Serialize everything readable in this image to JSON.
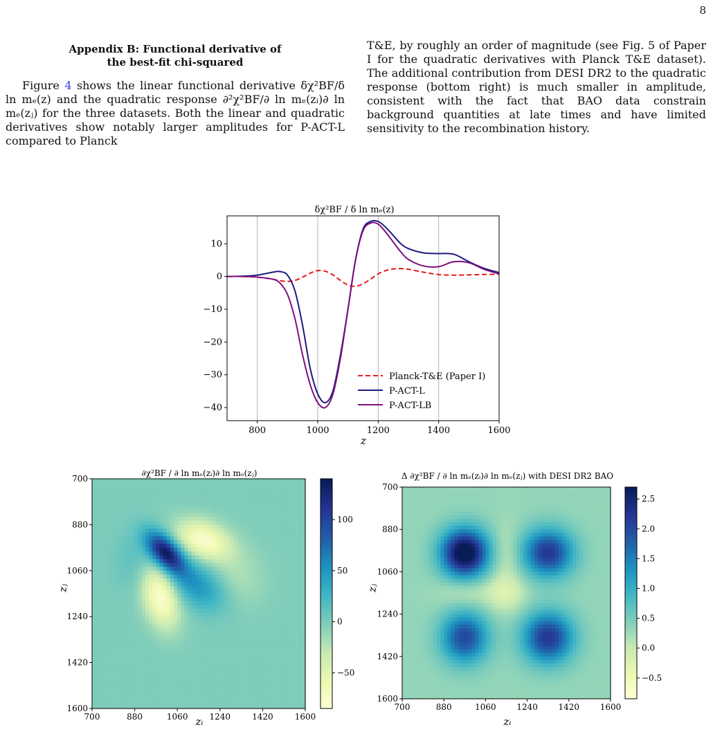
{
  "page_number": "8",
  "left_column": {
    "heading_line1": "Appendix B: Functional derivative of",
    "heading_line2": "the best-fit chi-squared",
    "p1_a": "Figure ",
    "p1_ref": "4",
    "p1_b": " shows the linear functional derivative δχ²BF/δ ln mₑ(z) and the quadratic response ∂²χ²BF/∂ ln mₑ(zᵢ)∂ ln mₑ(zⱼ) for the three datasets. Both the linear and quadratic derivatives show notably larger amplitudes for P-ACT-L compared to Planck"
  },
  "right_column": {
    "text": "T&E, by roughly an order of magnitude (see Fig. 5 of Paper I for the quadratic derivatives with Planck T&E dataset). The additional contribution from DESI DR2 to the quadratic response (bottom right) is much smaller in amplitude, consistent with the fact that BAO data constrain background quantities at late times and have limited sensitivity to the recombination history."
  },
  "chart_data": [
    {
      "type": "line",
      "title": "δχ²BF / δ ln mₑ(z)",
      "xlabel": "z",
      "ylabel": "",
      "xlim": [
        700,
        1600
      ],
      "ylim": [
        -44,
        18.5
      ],
      "xticks": [
        800,
        1000,
        1200,
        1400,
        1600
      ],
      "yticks": [
        10,
        0,
        -10,
        -20,
        -30,
        -40
      ],
      "ytick_labels": [
        "10",
        "0",
        "−10",
        "−20",
        "−30",
        "−40"
      ],
      "grid": "vertical lines at x ticks",
      "legend_position": "lower-right",
      "series": [
        {
          "name": "Planck-T&E (Paper I)",
          "color": "#e8161b",
          "style": "dashed",
          "x": [
            700,
            750,
            800,
            850,
            875,
            900,
            925,
            950,
            975,
            1000,
            1025,
            1050,
            1075,
            1100,
            1125,
            1150,
            1175,
            1200,
            1225,
            1250,
            1275,
            1300,
            1350,
            1400,
            1450,
            1500,
            1550,
            1600
          ],
          "y": [
            0,
            0,
            -0.2,
            -0.8,
            -1.3,
            -1.5,
            -1.2,
            -0.2,
            1.0,
            1.8,
            1.6,
            0.5,
            -1.2,
            -2.6,
            -3.0,
            -2.2,
            -0.8,
            0.8,
            1.8,
            2.3,
            2.4,
            2.2,
            1.3,
            0.6,
            0.4,
            0.5,
            0.6,
            0.7
          ]
        },
        {
          "name": "P-ACT-L",
          "color": "#1a1a7e",
          "style": "solid",
          "x": [
            700,
            750,
            800,
            850,
            875,
            900,
            925,
            950,
            975,
            1000,
            1025,
            1050,
            1075,
            1100,
            1125,
            1150,
            1175,
            1200,
            1225,
            1250,
            1275,
            1300,
            1350,
            1400,
            1450,
            1500,
            1550,
            1600
          ],
          "y": [
            0,
            0.1,
            0.4,
            1.3,
            1.5,
            0.4,
            -4.5,
            -15,
            -28,
            -35.8,
            -38.5,
            -35,
            -24,
            -10,
            5,
            14.5,
            16.8,
            16.8,
            15,
            12.5,
            10,
            8.5,
            7.2,
            7,
            6.8,
            4.5,
            2.5,
            1.2
          ]
        },
        {
          "name": "P-ACT-LB",
          "color": "#7d0f7d",
          "style": "solid",
          "x": [
            700,
            750,
            800,
            850,
            875,
            900,
            925,
            950,
            975,
            1000,
            1025,
            1050,
            1075,
            1100,
            1125,
            1150,
            1175,
            1200,
            1225,
            1250,
            1275,
            1300,
            1350,
            1400,
            1450,
            1500,
            1550,
            1600
          ],
          "y": [
            0,
            0,
            -0.2,
            -0.8,
            -2.0,
            -5.5,
            -13,
            -24,
            -33,
            -38.5,
            -40,
            -36,
            -25,
            -10,
            5,
            14,
            16.3,
            16,
            13.5,
            10.5,
            7.5,
            5.2,
            3.2,
            3.0,
            4.5,
            4.2,
            2.2,
            0.8
          ]
        }
      ]
    },
    {
      "type": "heatmap",
      "title": "∂χ²BF / ∂ ln mₑ(zᵢ)∂ ln mₑ(zⱼ)",
      "xlabel": "zᵢ",
      "ylabel": "zⱼ",
      "xlim": [
        700,
        1600
      ],
      "ylim": [
        1600,
        700
      ],
      "ticks": [
        "700",
        "880",
        "1060",
        "1240",
        "1420",
        "1600"
      ],
      "colorbar": {
        "min": -85,
        "max": 140,
        "ticks": [
          100,
          50,
          0,
          -50
        ],
        "tick_labels": [
          "100",
          "50",
          "0",
          "−50"
        ],
        "colormap": "YlGnBu"
      },
      "features": [
        {
          "kind": "peak",
          "z_i": 1010,
          "z_j": 990,
          "value": 140
        },
        {
          "kind": "trough",
          "z_i": 1170,
          "z_j": 940,
          "value": -75
        },
        {
          "kind": "trough",
          "z_i": 990,
          "z_j": 1160,
          "value": -80
        },
        {
          "kind": "positive ridge",
          "z_i": 1150,
          "z_j": 1120,
          "value": 55
        }
      ]
    },
    {
      "type": "heatmap",
      "title": "Δ ∂χ²BF / ∂ ln mₑ(zᵢ)∂ ln mₑ(zⱼ) with DESI DR2 BAO",
      "xlabel": "zᵢ",
      "ylabel": "zⱼ",
      "xlim": [
        700,
        1600
      ],
      "ylim": [
        1600,
        700
      ],
      "ticks": [
        "700",
        "880",
        "1060",
        "1240",
        "1420",
        "1600"
      ],
      "colorbar": {
        "min": -0.85,
        "max": 2.7,
        "ticks": [
          2.5,
          2.0,
          1.5,
          1.0,
          0.5,
          0.0,
          -0.5
        ],
        "tick_labels": [
          "2.5",
          "2.0",
          "1.5",
          "1.0",
          "0.5",
          "0.0",
          "−0.5"
        ],
        "colormap": "YlGnBu"
      },
      "features": [
        {
          "kind": "peak",
          "z_i": 970,
          "z_j": 980,
          "value": 2.7
        },
        {
          "kind": "peak",
          "z_i": 1330,
          "z_j": 980,
          "value": 1.9
        },
        {
          "kind": "peak",
          "z_i": 970,
          "z_j": 1340,
          "value": 1.7
        },
        {
          "kind": "peak",
          "z_i": 1330,
          "z_j": 1340,
          "value": 1.9
        },
        {
          "kind": "trough",
          "z_i": 1150,
          "z_j": 1150,
          "value": -0.5
        }
      ]
    }
  ]
}
